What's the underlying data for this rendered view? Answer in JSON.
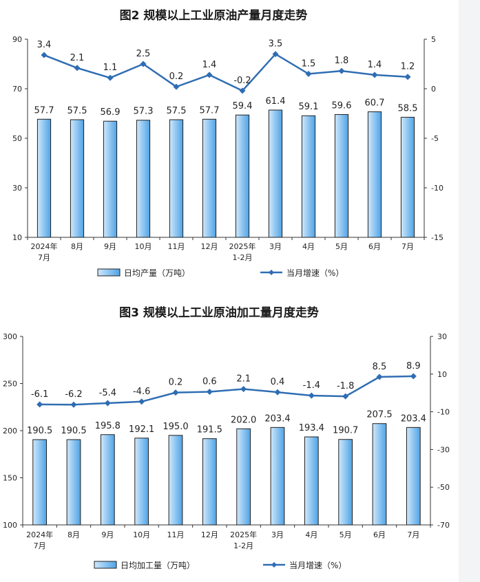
{
  "colors": {
    "bar_fill_light": "#cfe8fb",
    "bar_fill_dark": "#4fa3e6",
    "bar_stroke": "#1f1f1f",
    "line": "#2f6db3",
    "background": "#ffffff",
    "side_panel": "#f3f4f6"
  },
  "chart_data": [
    {
      "type": "bar",
      "title": "图2  规模以上工业原油产量月度走势",
      "categories": [
        [
          "2024年",
          "7月"
        ],
        [
          "8月"
        ],
        [
          "9月"
        ],
        [
          "10月"
        ],
        [
          "11月"
        ],
        [
          "12月"
        ],
        [
          "2025年",
          "1-2月"
        ],
        [
          "3月"
        ],
        [
          "4月"
        ],
        [
          "5月"
        ],
        [
          "6月"
        ],
        [
          "7月"
        ]
      ],
      "series": [
        {
          "name": "日均产量（万吨）",
          "type": "bar",
          "axis": "left",
          "values": [
            57.7,
            57.5,
            56.9,
            57.3,
            57.5,
            57.7,
            59.4,
            61.4,
            59.1,
            59.6,
            60.7,
            58.5
          ],
          "labels": [
            "57.7",
            "57.5",
            "56.9",
            "57.3",
            "57.5",
            "57.7",
            "59.4",
            "61.4",
            "59.1",
            "59.6",
            "60.7",
            "58.5"
          ]
        },
        {
          "name": "当月增速（%）",
          "type": "line",
          "axis": "right",
          "values": [
            3.4,
            2.1,
            1.1,
            2.5,
            0.2,
            1.4,
            -0.2,
            3.5,
            1.5,
            1.8,
            1.4,
            1.2
          ],
          "labels": [
            "3.4",
            "2.1",
            "1.1",
            "2.5",
            "0.2",
            "1.4",
            "-0.2",
            "3.5",
            "1.5",
            "1.8",
            "1.4",
            "1.2"
          ]
        }
      ],
      "y_left": {
        "ylim": [
          10,
          90
        ],
        "ticks": [
          10,
          30,
          50,
          70,
          90
        ],
        "tick_labels": [
          "10",
          "30",
          "50",
          "70",
          "90"
        ]
      },
      "y_right": {
        "ylim": [
          -15,
          5
        ],
        "ticks": [
          -15,
          -10,
          -5,
          0,
          5
        ],
        "tick_labels": [
          "-15",
          "-10",
          "-5",
          "0",
          "5"
        ]
      },
      "legend_position": "bottom"
    },
    {
      "type": "bar",
      "title": "图3  规模以上工业原油加工量月度走势",
      "categories": [
        [
          "2024年",
          "7月"
        ],
        [
          "8月"
        ],
        [
          "9月"
        ],
        [
          "10月"
        ],
        [
          "11月"
        ],
        [
          "12月"
        ],
        [
          "2025年",
          "1-2月"
        ],
        [
          "3月"
        ],
        [
          "4月"
        ],
        [
          "5月"
        ],
        [
          "6月"
        ],
        [
          "7月"
        ]
      ],
      "series": [
        {
          "name": "日均加工量（万吨）",
          "type": "bar",
          "axis": "left",
          "values": [
            190.5,
            190.5,
            195.8,
            192.1,
            195.0,
            191.5,
            202.0,
            203.4,
            193.4,
            190.7,
            207.5,
            203.4
          ],
          "labels": [
            "190.5",
            "190.5",
            "195.8",
            "192.1",
            "195.0",
            "191.5",
            "202.0",
            "203.4",
            "193.4",
            "190.7",
            "207.5",
            "203.4"
          ]
        },
        {
          "name": "当月增速（%）",
          "type": "line",
          "axis": "right",
          "values": [
            -6.1,
            -6.2,
            -5.4,
            -4.6,
            0.2,
            0.6,
            2.1,
            0.4,
            -1.4,
            -1.8,
            8.5,
            8.9
          ],
          "labels": [
            "-6.1",
            "-6.2",
            "-5.4",
            "-4.6",
            "0.2",
            "0.6",
            "2.1",
            "0.4",
            "-1.4",
            "-1.8",
            "8.5",
            "8.9"
          ]
        }
      ],
      "y_left": {
        "ylim": [
          100,
          300
        ],
        "ticks": [
          100,
          150,
          200,
          250,
          300
        ],
        "tick_labels": [
          "100",
          "150",
          "200",
          "250",
          "300"
        ]
      },
      "y_right": {
        "ylim": [
          -70,
          30
        ],
        "ticks": [
          -70,
          -50,
          -30,
          -10,
          10,
          30
        ],
        "tick_labels": [
          "-70",
          "-50",
          "-30",
          "-10",
          "10",
          "30"
        ]
      },
      "legend_position": "bottom"
    }
  ]
}
